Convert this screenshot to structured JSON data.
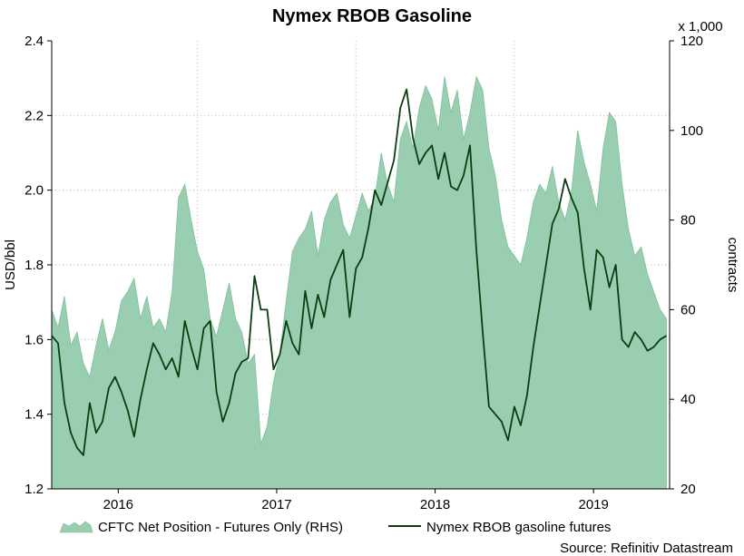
{
  "colors": {
    "area_fill": "#99cfb0",
    "area_stroke": "#7fbf9c",
    "line": "#0a3d10",
    "grid": "#bdbdbd"
  },
  "chart_data": {
    "type": "line",
    "title": "Nymex RBOB Gasoline",
    "ylabel_left": "USD/bbl",
    "ylabel_right": "contracts",
    "right_axis_multiplier": "x 1,000",
    "ylim_left": [
      1.2,
      2.4
    ],
    "ylim_right": [
      20,
      120
    ],
    "left_ticks": [
      "1.2",
      "1.4",
      "1.6",
      "1.8",
      "2.0",
      "2.2",
      "2.4"
    ],
    "right_ticks": [
      "20",
      "40",
      "60",
      "80",
      "100",
      "120"
    ],
    "x_tick_labels": [
      "2016",
      "2017",
      "2018",
      "2019"
    ],
    "x_tick_positions": [
      2016.0,
      2017.0,
      2018.0,
      2019.0
    ],
    "xlim": [
      2015.58,
      2019.48
    ],
    "grid": true,
    "legend_position": "bottom",
    "series": [
      {
        "name": "CFTC Net Position - Futures Only (RHS)",
        "type": "area",
        "axis": "right",
        "x": [
          2015.58,
          2015.62,
          2015.66,
          2015.7,
          2015.74,
          2015.78,
          2015.82,
          2015.86,
          2015.9,
          2015.94,
          2015.98,
          2016.02,
          2016.06,
          2016.1,
          2016.14,
          2016.18,
          2016.22,
          2016.26,
          2016.3,
          2016.34,
          2016.38,
          2016.42,
          2016.46,
          2016.5,
          2016.54,
          2016.58,
          2016.62,
          2016.66,
          2016.7,
          2016.74,
          2016.78,
          2016.82,
          2016.86,
          2016.9,
          2016.94,
          2016.98,
          2017.02,
          2017.06,
          2017.1,
          2017.14,
          2017.18,
          2017.22,
          2017.26,
          2017.3,
          2017.34,
          2017.38,
          2017.42,
          2017.46,
          2017.5,
          2017.54,
          2017.58,
          2017.62,
          2017.66,
          2017.7,
          2017.74,
          2017.78,
          2017.82,
          2017.86,
          2017.9,
          2017.94,
          2017.98,
          2018.02,
          2018.06,
          2018.1,
          2018.14,
          2018.18,
          2018.22,
          2018.26,
          2018.3,
          2018.34,
          2018.38,
          2018.42,
          2018.46,
          2018.5,
          2018.54,
          2018.58,
          2018.62,
          2018.66,
          2018.7,
          2018.74,
          2018.78,
          2018.82,
          2018.86,
          2018.9,
          2018.94,
          2018.98,
          2019.02,
          2019.06,
          2019.1,
          2019.14,
          2019.18,
          2019.22,
          2019.26,
          2019.3,
          2019.34,
          2019.38,
          2019.42,
          2019.46
        ],
        "y": [
          60,
          56,
          63,
          52,
          55,
          48,
          45,
          52,
          58,
          51,
          55,
          62,
          64,
          67,
          58,
          63,
          56,
          58,
          55,
          64,
          85,
          88,
          80,
          73,
          69,
          58,
          54,
          60,
          66,
          58,
          55,
          48,
          50,
          30,
          34,
          44,
          50,
          62,
          73,
          76,
          78,
          82,
          72,
          80,
          84,
          86,
          79,
          76,
          81,
          86,
          82,
          85,
          95,
          88,
          84,
          98,
          102,
          96,
          105,
          110,
          107,
          100,
          112,
          104,
          109,
          98,
          104,
          112,
          109,
          96,
          90,
          80,
          74,
          72,
          70,
          76,
          84,
          88,
          86,
          92,
          84,
          80,
          86,
          100,
          93,
          88,
          82,
          96,
          104,
          102,
          88,
          78,
          72,
          74,
          68,
          64,
          60,
          58
        ]
      },
      {
        "name": "Nymex RBOB gasoline futures",
        "type": "line",
        "axis": "left",
        "x": [
          2015.58,
          2015.62,
          2015.66,
          2015.7,
          2015.74,
          2015.78,
          2015.82,
          2015.86,
          2015.9,
          2015.94,
          2015.98,
          2016.02,
          2016.06,
          2016.1,
          2016.14,
          2016.18,
          2016.22,
          2016.26,
          2016.3,
          2016.34,
          2016.38,
          2016.42,
          2016.46,
          2016.5,
          2016.54,
          2016.58,
          2016.62,
          2016.66,
          2016.7,
          2016.74,
          2016.78,
          2016.82,
          2016.86,
          2016.9,
          2016.94,
          2016.98,
          2017.02,
          2017.06,
          2017.1,
          2017.14,
          2017.18,
          2017.22,
          2017.26,
          2017.3,
          2017.34,
          2017.38,
          2017.42,
          2017.46,
          2017.5,
          2017.54,
          2017.58,
          2017.62,
          2017.66,
          2017.7,
          2017.74,
          2017.78,
          2017.82,
          2017.86,
          2017.9,
          2017.94,
          2017.98,
          2018.02,
          2018.06,
          2018.1,
          2018.14,
          2018.18,
          2018.22,
          2018.26,
          2018.3,
          2018.34,
          2018.38,
          2018.42,
          2018.46,
          2018.5,
          2018.54,
          2018.58,
          2018.62,
          2018.66,
          2018.7,
          2018.74,
          2018.78,
          2018.82,
          2018.86,
          2018.9,
          2018.94,
          2018.98,
          2019.02,
          2019.06,
          2019.1,
          2019.14,
          2019.18,
          2019.22,
          2019.26,
          2019.3,
          2019.34,
          2019.38,
          2019.42,
          2019.46
        ],
        "y": [
          1.61,
          1.59,
          1.43,
          1.35,
          1.31,
          1.29,
          1.43,
          1.35,
          1.38,
          1.47,
          1.5,
          1.46,
          1.41,
          1.34,
          1.44,
          1.52,
          1.59,
          1.56,
          1.52,
          1.55,
          1.5,
          1.65,
          1.58,
          1.52,
          1.63,
          1.65,
          1.46,
          1.38,
          1.43,
          1.51,
          1.54,
          1.55,
          1.77,
          1.68,
          1.68,
          1.52,
          1.56,
          1.65,
          1.59,
          1.56,
          1.73,
          1.63,
          1.72,
          1.66,
          1.76,
          1.8,
          1.84,
          1.66,
          1.79,
          1.82,
          1.9,
          2.0,
          1.96,
          2.02,
          2.08,
          2.22,
          2.27,
          2.14,
          2.07,
          2.1,
          2.12,
          2.03,
          2.1,
          2.01,
          2.0,
          2.04,
          2.12,
          1.84,
          1.62,
          1.42,
          1.4,
          1.38,
          1.33,
          1.42,
          1.37,
          1.45,
          1.58,
          1.69,
          1.8,
          1.91,
          1.95,
          2.03,
          1.98,
          1.94,
          1.79,
          1.68,
          1.84,
          1.82,
          1.74,
          1.8,
          1.6,
          1.58,
          1.62,
          1.6,
          1.57,
          1.58,
          1.6,
          1.61
        ]
      }
    ]
  },
  "footer": {
    "source": "Source: Refinitiv Datastream"
  }
}
